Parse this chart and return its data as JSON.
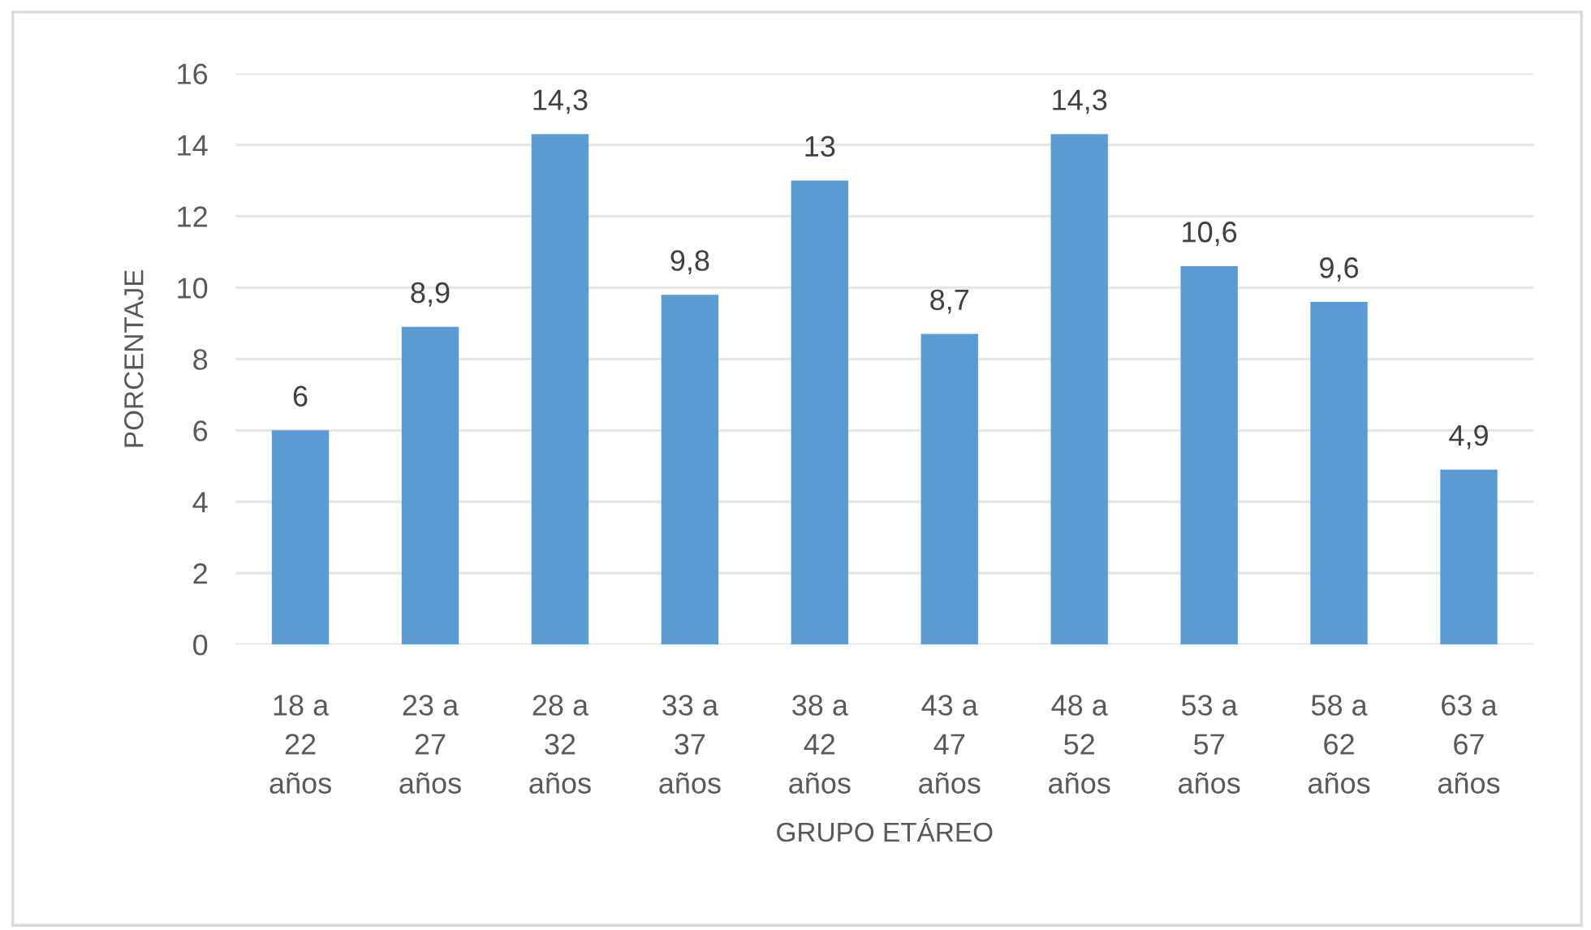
{
  "chart_data": {
    "type": "bar",
    "xlabel": "GRUPO ETÁREO",
    "ylabel": "PORCENTAJE",
    "categories": [
      "18 a\n22\naños",
      "23 a\n27\naños",
      "28 a\n32\naños",
      "33 a\n37\naños",
      "38 a\n42\naños",
      "43 a\n47\naños",
      "48 a\n52\naños",
      "53 a\n57\naños",
      "58 a\n62\naños",
      "63 a\n67\naños"
    ],
    "values": [
      6,
      8.9,
      14.3,
      9.8,
      13,
      8.7,
      14.3,
      10.6,
      9.6,
      4.9
    ],
    "value_labels": [
      "6",
      "8,9",
      "14,3",
      "9,8",
      "13",
      "8,7",
      "14,3",
      "10,6",
      "9,6",
      "4,9"
    ],
    "color": "#5b9bd5",
    "ylim": [
      0,
      16
    ],
    "yticks": [
      0,
      2,
      4,
      6,
      8,
      10,
      12,
      14,
      16
    ],
    "grid": "y",
    "legend": false
  }
}
